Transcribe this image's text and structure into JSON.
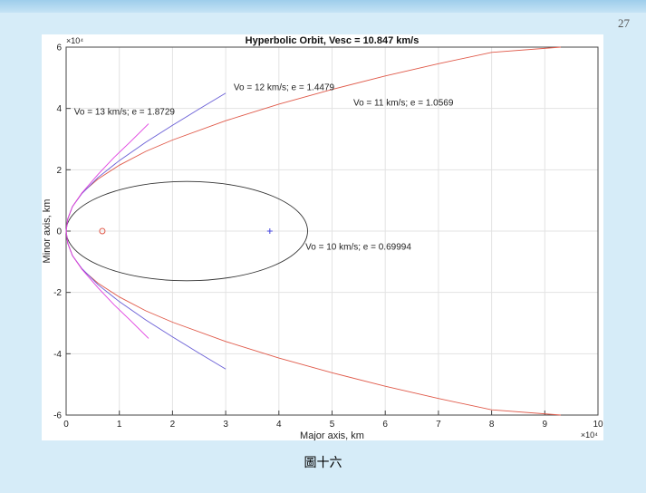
{
  "slide": {
    "page_number": "27",
    "caption": "圖十六"
  },
  "chart_data": {
    "type": "line",
    "title": "Hyperbolic Orbit, Vesc = 10.847 km/s",
    "xlabel": "Major axis, km",
    "ylabel": "Minor axis, km",
    "x_exponent": "×10⁴",
    "y_exponent": "×10⁴",
    "xlim": [
      0,
      100000
    ],
    "ylim": [
      -60000,
      60000
    ],
    "x_ticks": [
      0,
      10000,
      20000,
      30000,
      40000,
      50000,
      60000,
      70000,
      80000,
      90000,
      100000
    ],
    "y_ticks": [
      -60000,
      -40000,
      -20000,
      0,
      20000,
      40000,
      60000
    ],
    "x_tick_labels": [
      "0",
      "1",
      "2",
      "3",
      "4",
      "5",
      "6",
      "7",
      "8",
      "9",
      "10"
    ],
    "y_tick_labels": [
      "-6",
      "-4",
      "-2",
      "0",
      "2",
      "4",
      "6"
    ],
    "grid": true,
    "focus": {
      "x": 6800,
      "y": 0
    },
    "center": {
      "x": 38300,
      "y": 0
    },
    "series": [
      {
        "label": "Vo = 10 km/s; e = 0.69994",
        "kind": "ellipse",
        "center_x": 22700,
        "half_width": 22700,
        "half_height": 16200,
        "color": "#333333",
        "label_x": 45000,
        "label_y": -6000
      },
      {
        "label": "Vo = 11 km/s; e = 1.0569",
        "kind": "hyperbola",
        "color": "#e05a4a",
        "x": [
          0,
          300,
          1200,
          3000,
          6000,
          10000,
          15000,
          20000,
          30000,
          40000,
          50000,
          60000,
          70000,
          80000,
          93000
        ],
        "y": [
          0,
          4000,
          8000,
          12500,
          17000,
          21500,
          26000,
          29700,
          36000,
          41400,
          46200,
          50600,
          54600,
          58300,
          60000
        ],
        "label_x": 54000,
        "label_y": 41000
      },
      {
        "label": "Vo = 12 km/s; e = 1.4479",
        "kind": "hyperbola",
        "color": "#6a5fd6",
        "x": [
          0,
          300,
          1200,
          3000,
          6000,
          10000,
          15000,
          20000,
          25000,
          30000
        ],
        "y": [
          0,
          4000,
          8000,
          12300,
          17500,
          23000,
          29000,
          34500,
          39800,
          45000
        ],
        "label_x": 31500,
        "label_y": 46000
      },
      {
        "label": "Vo = 13 km/s; e = 1.8729",
        "kind": "hyperbola",
        "color": "#e040e0",
        "x": [
          0,
          300,
          1200,
          3000,
          6000,
          9000,
          12000,
          15500
        ],
        "y": [
          0,
          4000,
          8000,
          12500,
          18500,
          24000,
          29000,
          35000
        ],
        "label_x": 1500,
        "label_y": 38000
      }
    ]
  }
}
